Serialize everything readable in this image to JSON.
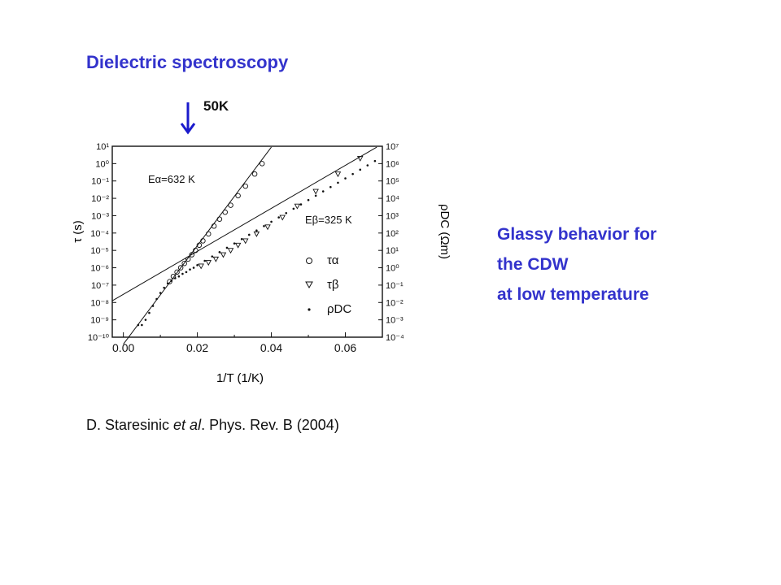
{
  "slide": {
    "title": "Dielectric spectroscopy",
    "marker_label": "50K",
    "side_text": [
      "Glassy behavior for",
      "the CDW",
      "at low temperature"
    ],
    "citation": {
      "prefix": "D. Staresinic ",
      "italic": "et al",
      "suffix": ". Phys. Rev. B (2004)"
    }
  },
  "colors": {
    "title": "#3333cc",
    "arrow": "#1a1acc",
    "ink": "#111111"
  },
  "chart_data": {
    "type": "scatter",
    "xlabel": "1/T (1/K)",
    "ylabel": "τ (s)",
    "ylabel_right": "ρDC (Ωm)",
    "xlim": [
      -0.003,
      0.07
    ],
    "ylim": [
      -10,
      1
    ],
    "ylim_right": [
      -4,
      7
    ],
    "x_ticks": [
      "0.00",
      "0.02",
      "0.04",
      "0.06"
    ],
    "x_tick_values": [
      0.0,
      0.02,
      0.04,
      0.06
    ],
    "y_ticks": [
      "10¹",
      "10⁰",
      "10⁻¹",
      "10⁻²",
      "10⁻³",
      "10⁻⁴",
      "10⁻⁵",
      "10⁻⁶",
      "10⁻⁷",
      "10⁻⁸",
      "10⁻⁹",
      "10⁻¹⁰"
    ],
    "y_tick_exponents": [
      1,
      0,
      -1,
      -2,
      -3,
      -4,
      -5,
      -6,
      -7,
      -8,
      -9,
      -10
    ],
    "y_ticks_right": [
      "10⁷",
      "10⁶",
      "10⁵",
      "10⁴",
      "10³",
      "10²",
      "10¹",
      "10⁰",
      "10⁻¹",
      "10⁻²",
      "10⁻³",
      "10⁻⁴"
    ],
    "annotations": [
      "Eα=632 K",
      "Eβ=325 K"
    ],
    "legend": [
      "τα",
      "τβ",
      "ρDC"
    ],
    "legend_position": "bottom-right",
    "marker_x": 0.02,
    "series": [
      {
        "name": "τα",
        "marker": "circle",
        "x": [
          0.0125,
          0.0135,
          0.0145,
          0.0155,
          0.0165,
          0.0175,
          0.0185,
          0.0195,
          0.0205,
          0.0215,
          0.023,
          0.0245,
          0.026,
          0.0275,
          0.029,
          0.031,
          0.033,
          0.0355,
          0.0375
        ],
        "y": [
          -6.8,
          -6.5,
          -6.25,
          -6.0,
          -5.75,
          -5.5,
          -5.25,
          -5.0,
          -4.7,
          -4.45,
          -4.05,
          -3.6,
          -3.2,
          -2.8,
          -2.4,
          -1.85,
          -1.3,
          -0.6,
          0.0
        ]
      },
      {
        "name": "τβ",
        "marker": "triangle",
        "x": [
          0.021,
          0.023,
          0.025,
          0.027,
          0.029,
          0.031,
          0.033,
          0.036,
          0.039,
          0.043,
          0.047,
          0.052,
          0.058,
          0.064
        ],
        "y": [
          -5.9,
          -5.7,
          -5.5,
          -5.25,
          -5.0,
          -4.7,
          -4.45,
          -4.05,
          -3.65,
          -3.1,
          -2.45,
          -1.6,
          -0.6,
          0.3
        ]
      },
      {
        "name": "ρDC",
        "marker": "dot",
        "x": [
          0.004,
          0.005,
          0.006,
          0.007,
          0.008,
          0.009,
          0.01,
          0.011,
          0.012,
          0.013,
          0.014,
          0.015,
          0.016,
          0.017,
          0.018,
          0.019,
          0.02,
          0.022,
          0.024,
          0.026,
          0.028,
          0.03,
          0.032,
          0.034,
          0.036,
          0.038,
          0.04,
          0.042,
          0.044,
          0.046,
          0.048,
          0.05,
          0.052,
          0.054,
          0.056,
          0.058,
          0.06,
          0.062,
          0.064,
          0.066,
          0.068
        ],
        "y": [
          -9.3,
          -9.3,
          -9.0,
          -8.6,
          -8.2,
          -7.8,
          -7.45,
          -7.15,
          -6.9,
          -6.75,
          -6.6,
          -6.5,
          -6.35,
          -6.25,
          -6.1,
          -6.0,
          -5.85,
          -5.6,
          -5.35,
          -5.1,
          -4.85,
          -4.6,
          -4.35,
          -4.1,
          -3.85,
          -3.6,
          -3.35,
          -3.1,
          -2.85,
          -2.6,
          -2.35,
          -2.1,
          -1.85,
          -1.6,
          -1.35,
          -1.1,
          -0.85,
          -0.6,
          -0.35,
          -0.1,
          0.15
        ]
      }
    ],
    "fit_lines": [
      {
        "name": "Eα fit",
        "x": [
          0.0,
          0.04
        ],
        "y": [
          -10.4,
          0.95
        ]
      },
      {
        "name": "Eβ fit",
        "x": [
          -0.003,
          0.0685
        ],
        "y": [
          -7.9,
          0.95
        ]
      }
    ]
  }
}
